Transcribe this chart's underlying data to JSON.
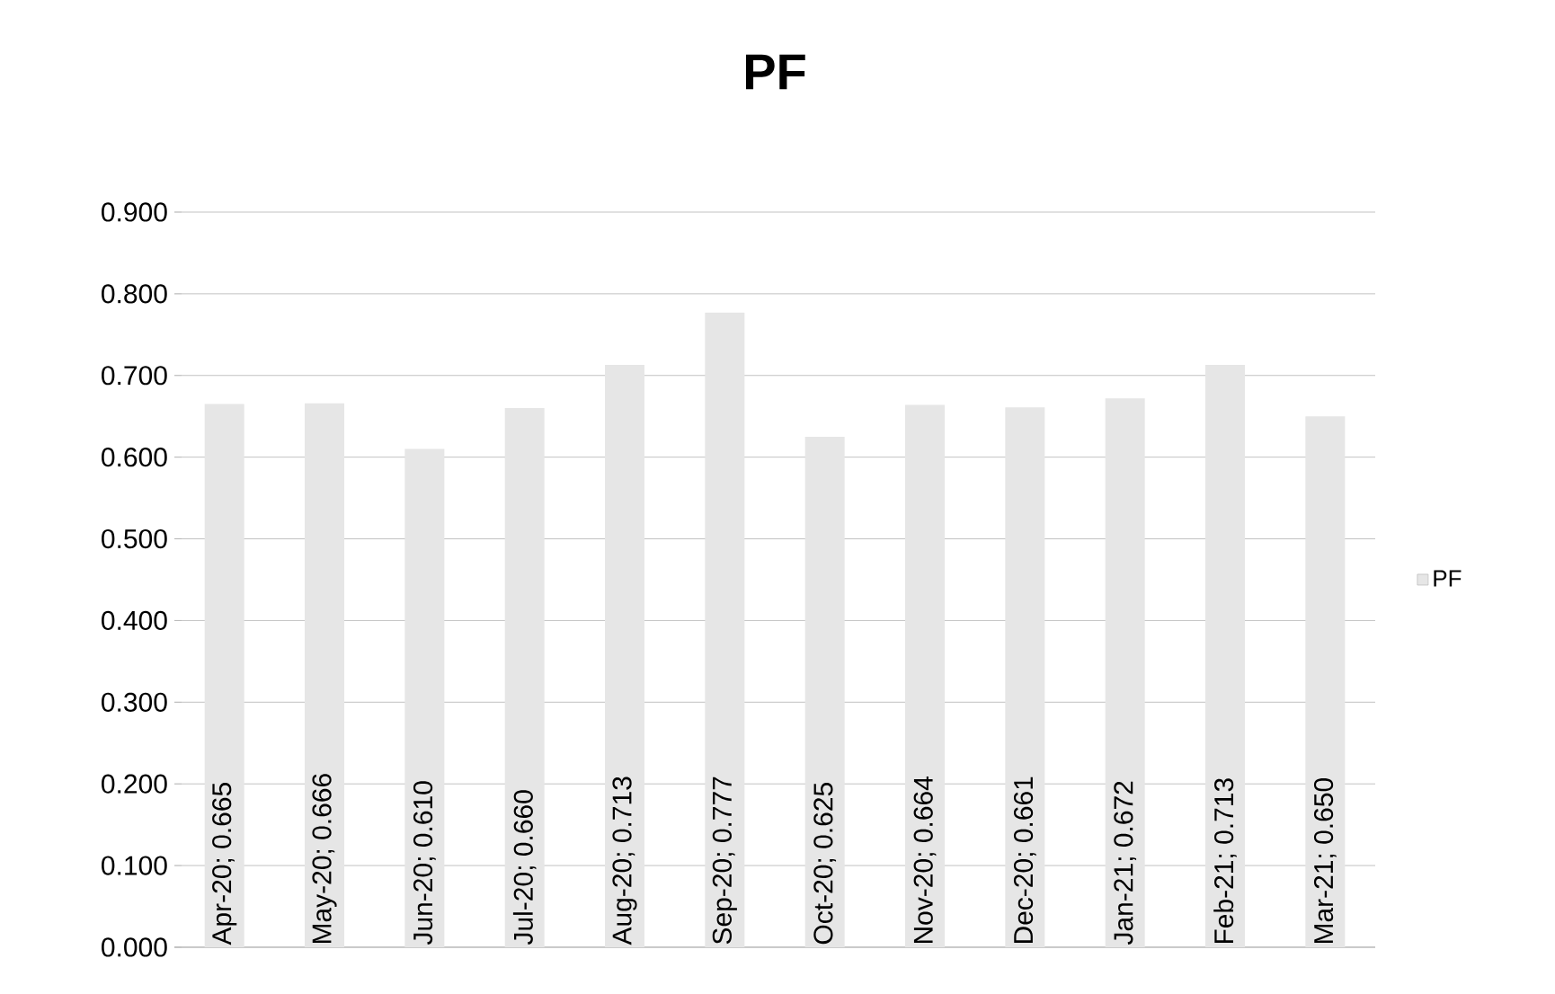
{
  "chart_data": {
    "type": "bar",
    "title": "PF",
    "categories": [
      null,
      null,
      null,
      null,
      null,
      null,
      null,
      null,
      null,
      null,
      null,
      null
    ],
    "series": [
      {
        "name": "PF",
        "color": "#e6e6e6",
        "values": [
          0.665,
          0.666,
          0.61,
          0.66,
          0.713,
          0.777,
          0.625,
          0.664,
          0.661,
          0.672,
          0.713,
          0.65
        ],
        "value_labels": [
          "Apr-20; 0.665",
          "May-20; 0.666",
          "Jun-20; 0.610",
          "Jul-20; 0.660",
          "Aug-20; 0.713",
          "Sep-20; 0.777",
          "Oct-20; 0.625",
          "Nov-20; 0.664",
          "Dec-20; 0.661",
          "Jan-21; 0.672",
          "Feb-21; 0.713",
          "Mar-21; 0.650"
        ]
      }
    ],
    "ylim": [
      0,
      0.9
    ],
    "yticks": [
      {
        "value": 0,
        "label": "0.000"
      },
      {
        "value": 0.1,
        "label": "0.100"
      },
      {
        "value": 0.2,
        "label": "0.200"
      },
      {
        "value": 0.3,
        "label": "0.300"
      },
      {
        "value": 0.4,
        "label": "0.400"
      },
      {
        "value": 0.5,
        "label": "0.500"
      },
      {
        "value": 0.6,
        "label": "0.600"
      },
      {
        "value": 0.7,
        "label": "0.700"
      },
      {
        "value": 0.8,
        "label": "0.800"
      },
      {
        "value": 0.9,
        "label": "0.900"
      }
    ],
    "grid": "y",
    "legend": "right",
    "tick_labels": "y"
  }
}
